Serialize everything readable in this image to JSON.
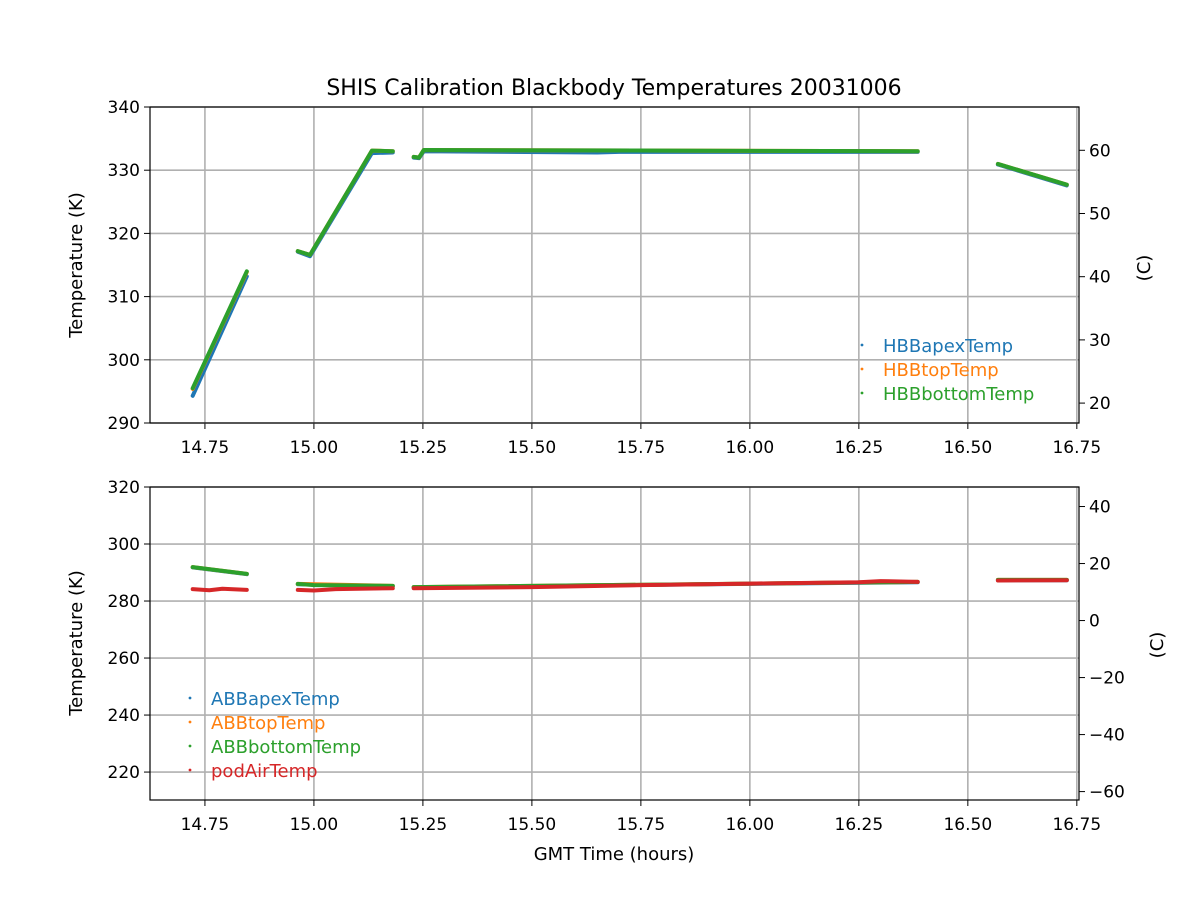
{
  "chart_data": [
    {
      "type": "line",
      "title": "SHIS Calibration Blackbody Temperatures 20031006",
      "xlabel": "",
      "ylabel": "Temperature (K)",
      "ylabel_right": "(C)",
      "xlim": [
        14.624,
        16.755
      ],
      "ylim": [
        290,
        340
      ],
      "xticks": [
        "14.75",
        "15.00",
        "15.25",
        "15.50",
        "15.75",
        "16.00",
        "16.25",
        "16.50",
        "16.75"
      ],
      "yticks": [
        "290",
        "300",
        "310",
        "320",
        "330",
        "340"
      ],
      "yticks_right": [
        "20",
        "30",
        "40",
        "50",
        "60"
      ],
      "grid": true,
      "legend_position": "lower-right",
      "series": [
        {
          "name": "HBBapexTemp",
          "color": "#1f77b4",
          "segments": [
            [
              [
                14.722,
                294.3
              ],
              [
                14.846,
                313.2
              ]
            ],
            [
              [
                14.963,
                317.1
              ],
              [
                14.991,
                316.4
              ],
              [
                15.133,
                332.7
              ],
              [
                15.181,
                332.8
              ]
            ],
            [
              [
                15.229,
                332.0
              ],
              [
                15.241,
                331.9
              ],
              [
                15.252,
                333.0
              ],
              [
                15.65,
                332.8
              ],
              [
                15.7,
                332.9
              ],
              [
                16.385,
                332.9
              ]
            ],
            [
              [
                16.569,
                330.9
              ],
              [
                16.727,
                327.6
              ]
            ]
          ]
        },
        {
          "name": "HBBtopTemp",
          "color": "#ff7f0e",
          "segments": [
            [
              [
                14.722,
                295.4
              ],
              [
                14.846,
                313.9
              ]
            ],
            [
              [
                14.963,
                317.2
              ],
              [
                14.991,
                316.6
              ],
              [
                15.133,
                333.1
              ],
              [
                15.181,
                333.0
              ]
            ],
            [
              [
                15.229,
                332.1
              ],
              [
                15.241,
                332.0
              ],
              [
                15.252,
                333.2
              ],
              [
                16.385,
                333.0
              ]
            ],
            [
              [
                16.569,
                331.0
              ],
              [
                16.727,
                327.7
              ]
            ]
          ]
        },
        {
          "name": "HBBbottomTemp",
          "color": "#2ca02c",
          "segments": [
            [
              [
                14.722,
                295.5
              ],
              [
                14.846,
                314.0
              ]
            ],
            [
              [
                14.963,
                317.2
              ],
              [
                14.991,
                316.6
              ],
              [
                15.133,
                333.1
              ],
              [
                15.181,
                333.0
              ]
            ],
            [
              [
                15.229,
                332.1
              ],
              [
                15.241,
                332.0
              ],
              [
                15.252,
                333.2
              ],
              [
                16.385,
                333.0
              ]
            ],
            [
              [
                16.569,
                331.0
              ],
              [
                16.727,
                327.7
              ]
            ]
          ]
        }
      ]
    },
    {
      "type": "line",
      "title": "",
      "xlabel": "GMT Time (hours)",
      "ylabel": "Temperature (K)",
      "ylabel_right": "(C)",
      "xlim": [
        14.624,
        16.755
      ],
      "ylim": [
        210.2,
        320
      ],
      "xticks": [
        "14.75",
        "15.00",
        "15.25",
        "15.50",
        "15.75",
        "16.00",
        "16.25",
        "16.50",
        "16.75"
      ],
      "yticks": [
        "220",
        "240",
        "260",
        "280",
        "300",
        "320"
      ],
      "yticks_right": [
        "−60",
        "−40",
        "−20",
        "0",
        "20",
        "40"
      ],
      "grid": true,
      "legend_position": "lower-left",
      "series": [
        {
          "name": "ABBapexTemp",
          "color": "#1f77b4",
          "segments": [
            [
              [
                14.722,
                291.8
              ],
              [
                14.846,
                289.4
              ]
            ],
            [
              [
                14.963,
                285.9
              ],
              [
                15.181,
                285.2
              ]
            ],
            [
              [
                15.229,
                284.8
              ],
              [
                16.385,
                286.6
              ]
            ],
            [
              [
                16.569,
                287.3
              ],
              [
                16.727,
                287.3
              ]
            ]
          ]
        },
        {
          "name": "ABBtopTemp",
          "color": "#ff7f0e",
          "segments": [
            [
              [
                14.722,
                291.9
              ],
              [
                14.846,
                289.5
              ]
            ],
            [
              [
                14.963,
                286.0
              ],
              [
                15.181,
                285.3
              ]
            ],
            [
              [
                15.229,
                284.9
              ],
              [
                16.385,
                286.7
              ]
            ],
            [
              [
                16.569,
                287.4
              ],
              [
                16.727,
                287.4
              ]
            ]
          ]
        },
        {
          "name": "ABBbottomTemp",
          "color": "#2ca02c",
          "segments": [
            [
              [
                14.722,
                291.9
              ],
              [
                14.846,
                289.5
              ]
            ],
            [
              [
                14.963,
                286.0
              ],
              [
                15.0,
                285.6
              ],
              [
                15.181,
                285.3
              ]
            ],
            [
              [
                15.229,
                284.9
              ],
              [
                16.385,
                286.7
              ]
            ],
            [
              [
                16.569,
                287.4
              ],
              [
                16.727,
                287.4
              ]
            ]
          ]
        },
        {
          "name": "podAirTemp",
          "color": "#d62728",
          "segments": [
            [
              [
                14.722,
                284.2
              ],
              [
                14.76,
                283.8
              ],
              [
                14.79,
                284.3
              ],
              [
                14.846,
                283.9
              ]
            ],
            [
              [
                14.963,
                283.9
              ],
              [
                15.0,
                283.7
              ],
              [
                15.05,
                284.2
              ],
              [
                15.181,
                284.5
              ]
            ],
            [
              [
                15.229,
                284.5
              ],
              [
                15.5,
                284.9
              ],
              [
                15.75,
                285.6
              ],
              [
                16.0,
                286.1
              ],
              [
                16.25,
                286.6
              ],
              [
                16.3,
                287.0
              ],
              [
                16.385,
                286.7
              ]
            ],
            [
              [
                16.569,
                287.2
              ],
              [
                16.727,
                287.3
              ]
            ]
          ]
        }
      ]
    }
  ]
}
